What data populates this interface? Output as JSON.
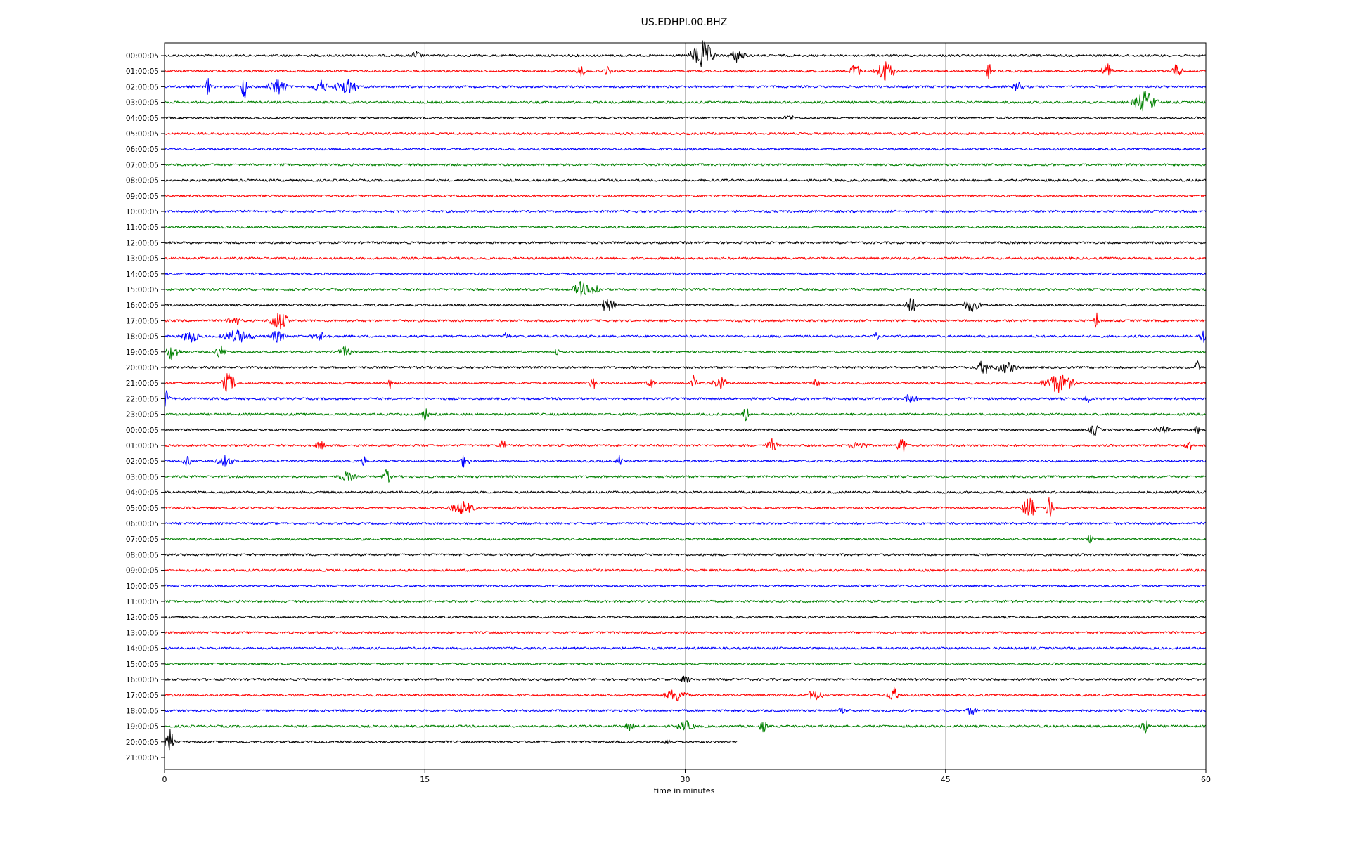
{
  "chart_data": {
    "type": "line",
    "title": "US.EDHPI.00.BHZ",
    "xlabel": "time in minutes",
    "ylabel": "",
    "xlim": [
      0,
      60
    ],
    "x_ticks": [
      "0",
      "15",
      "30",
      "45",
      "60"
    ],
    "x_tick_values": [
      0,
      15,
      30,
      45,
      60
    ],
    "grid": "vertical",
    "legend": "none",
    "color_cycle": [
      "#000000",
      "#ff0000",
      "#0000ff",
      "#008000"
    ],
    "grid_color": "#b0b0b0",
    "row_labels": [
      "00:00:05",
      "01:00:05",
      "02:00:05",
      "03:00:05",
      "04:00:05",
      "05:00:05",
      "06:00:05",
      "07:00:05",
      "08:00:05",
      "09:00:05",
      "10:00:05",
      "11:00:05",
      "12:00:05",
      "13:00:05",
      "14:00:05",
      "15:00:05",
      "16:00:05",
      "17:00:05",
      "18:00:05",
      "19:00:05",
      "20:00:05",
      "21:00:05",
      "22:00:05",
      "23:00:05",
      "00:00:05",
      "01:00:05",
      "02:00:05",
      "03:00:05",
      "04:00:05",
      "05:00:05",
      "06:00:05",
      "07:00:05",
      "08:00:05",
      "09:00:05",
      "10:00:05",
      "11:00:05",
      "12:00:05",
      "13:00:05",
      "14:00:05",
      "15:00:05",
      "16:00:05",
      "17:00:05",
      "18:00:05",
      "19:00:05",
      "20:00:05",
      "21:00:05"
    ],
    "last_trace_end_minute": 33,
    "traces_drawn": 45,
    "events": [
      {
        "row": 0,
        "t": 14.5,
        "amp": 0.4,
        "dur": 0.5
      },
      {
        "row": 0,
        "t": 31,
        "amp": 1.4,
        "dur": 1.5
      },
      {
        "row": 0,
        "t": 33,
        "amp": 0.6,
        "dur": 1.0
      },
      {
        "row": 1,
        "t": 24,
        "amp": 0.6,
        "dur": 0.4
      },
      {
        "row": 1,
        "t": 25.5,
        "amp": 0.4,
        "dur": 0.3
      },
      {
        "row": 1,
        "t": 39.8,
        "amp": 0.8,
        "dur": 0.5
      },
      {
        "row": 1,
        "t": 41.5,
        "amp": 1.0,
        "dur": 1.2
      },
      {
        "row": 1,
        "t": 47.5,
        "amp": 0.9,
        "dur": 0.1
      },
      {
        "row": 1,
        "t": 54.3,
        "amp": 0.9,
        "dur": 0.5
      },
      {
        "row": 1,
        "t": 58.3,
        "amp": 0.6,
        "dur": 0.6
      },
      {
        "row": 2,
        "t": 2.5,
        "amp": 0.9,
        "dur": 0.1
      },
      {
        "row": 2,
        "t": 4.6,
        "amp": 1.6,
        "dur": 0.2
      },
      {
        "row": 2,
        "t": 6.5,
        "amp": 0.8,
        "dur": 1.2
      },
      {
        "row": 2,
        "t": 9,
        "amp": 0.6,
        "dur": 1.0
      },
      {
        "row": 2,
        "t": 10.5,
        "amp": 0.7,
        "dur": 1.5
      },
      {
        "row": 2,
        "t": 49.2,
        "amp": 0.5,
        "dur": 0.5
      },
      {
        "row": 3,
        "t": 56.5,
        "amp": 1.0,
        "dur": 1.5
      },
      {
        "row": 4,
        "t": 36,
        "amp": 0.3,
        "dur": 0.5
      },
      {
        "row": 15,
        "t": 24,
        "amp": 0.7,
        "dur": 1.0
      },
      {
        "row": 15,
        "t": 24.8,
        "amp": 0.6,
        "dur": 0.6
      },
      {
        "row": 16,
        "t": 25.5,
        "amp": 0.6,
        "dur": 1.0
      },
      {
        "row": 16,
        "t": 43,
        "amp": 0.8,
        "dur": 0.6
      },
      {
        "row": 16,
        "t": 46.5,
        "amp": 0.6,
        "dur": 1.0
      },
      {
        "row": 17,
        "t": 4,
        "amp": 0.5,
        "dur": 0.8
      },
      {
        "row": 17,
        "t": 6.6,
        "amp": 0.9,
        "dur": 1.2
      },
      {
        "row": 17,
        "t": 53.7,
        "amp": 0.9,
        "dur": 0.1
      },
      {
        "row": 18,
        "t": 1.5,
        "amp": 0.6,
        "dur": 1.0
      },
      {
        "row": 18,
        "t": 4.2,
        "amp": 0.6,
        "dur": 2.0
      },
      {
        "row": 18,
        "t": 6.5,
        "amp": 0.5,
        "dur": 1.0
      },
      {
        "row": 18,
        "t": 9,
        "amp": 0.4,
        "dur": 1.0
      },
      {
        "row": 18,
        "t": 19.7,
        "amp": 0.4,
        "dur": 0.3
      },
      {
        "row": 18,
        "t": 41,
        "amp": 0.4,
        "dur": 0.2
      },
      {
        "row": 18,
        "t": 59.8,
        "amp": 0.8,
        "dur": 0.2
      },
      {
        "row": 19,
        "t": 0.4,
        "amp": 0.7,
        "dur": 1.0
      },
      {
        "row": 19,
        "t": 3.2,
        "amp": 0.6,
        "dur": 0.6
      },
      {
        "row": 19,
        "t": 10.4,
        "amp": 0.5,
        "dur": 0.7
      },
      {
        "row": 19,
        "t": 22.6,
        "amp": 0.4,
        "dur": 0.1
      },
      {
        "row": 20,
        "t": 47.2,
        "amp": 0.7,
        "dur": 0.8
      },
      {
        "row": 20,
        "t": 48.5,
        "amp": 0.5,
        "dur": 1.5
      },
      {
        "row": 20,
        "t": 59.5,
        "amp": 0.6,
        "dur": 0.3
      },
      {
        "row": 21,
        "t": 3.7,
        "amp": 1.0,
        "dur": 0.8
      },
      {
        "row": 21,
        "t": 13,
        "amp": 0.5,
        "dur": 0.1
      },
      {
        "row": 21,
        "t": 24.7,
        "amp": 0.6,
        "dur": 0.3
      },
      {
        "row": 21,
        "t": 28,
        "amp": 0.5,
        "dur": 0.3
      },
      {
        "row": 21,
        "t": 30.5,
        "amp": 0.8,
        "dur": 0.2
      },
      {
        "row": 21,
        "t": 32,
        "amp": 0.6,
        "dur": 0.8
      },
      {
        "row": 21,
        "t": 37.5,
        "amp": 0.5,
        "dur": 0.3
      },
      {
        "row": 21,
        "t": 51.5,
        "amp": 0.9,
        "dur": 2.0
      },
      {
        "row": 22,
        "t": 0.1,
        "amp": 0.8,
        "dur": 0.3
      },
      {
        "row": 22,
        "t": 43,
        "amp": 0.5,
        "dur": 0.6
      },
      {
        "row": 22,
        "t": 53.2,
        "amp": 0.6,
        "dur": 0.2
      },
      {
        "row": 23,
        "t": 15,
        "amp": 0.6,
        "dur": 0.3
      },
      {
        "row": 23,
        "t": 33.5,
        "amp": 0.8,
        "dur": 0.2
      },
      {
        "row": 24,
        "t": 53.6,
        "amp": 0.5,
        "dur": 0.6
      },
      {
        "row": 24,
        "t": 57.5,
        "amp": 0.3,
        "dur": 1.0
      },
      {
        "row": 24,
        "t": 59.5,
        "amp": 0.4,
        "dur": 0.2
      },
      {
        "row": 25,
        "t": 9,
        "amp": 0.4,
        "dur": 0.5
      },
      {
        "row": 25,
        "t": 19.5,
        "amp": 0.6,
        "dur": 0.3
      },
      {
        "row": 25,
        "t": 35,
        "amp": 0.6,
        "dur": 0.6
      },
      {
        "row": 25,
        "t": 40,
        "amp": 0.4,
        "dur": 1.0
      },
      {
        "row": 25,
        "t": 42.5,
        "amp": 0.9,
        "dur": 0.5
      },
      {
        "row": 25,
        "t": 59,
        "amp": 0.7,
        "dur": 0.3
      },
      {
        "row": 26,
        "t": 1.3,
        "amp": 0.7,
        "dur": 0.3
      },
      {
        "row": 26,
        "t": 3.5,
        "amp": 0.5,
        "dur": 1.0
      },
      {
        "row": 26,
        "t": 11.5,
        "amp": 0.5,
        "dur": 0.1
      },
      {
        "row": 26,
        "t": 17.3,
        "amp": 0.6,
        "dur": 0.5
      },
      {
        "row": 26,
        "t": 26.2,
        "amp": 0.5,
        "dur": 0.2
      },
      {
        "row": 27,
        "t": 10.5,
        "amp": 0.4,
        "dur": 1.0
      },
      {
        "row": 27,
        "t": 12.8,
        "amp": 0.7,
        "dur": 0.4
      },
      {
        "row": 29,
        "t": 17.2,
        "amp": 0.6,
        "dur": 1.5
      },
      {
        "row": 29,
        "t": 49.8,
        "amp": 1.2,
        "dur": 0.7
      },
      {
        "row": 29,
        "t": 51,
        "amp": 1.3,
        "dur": 0.3
      },
      {
        "row": 31,
        "t": 53.3,
        "amp": 0.4,
        "dur": 0.3
      },
      {
        "row": 40,
        "t": 30,
        "amp": 0.3,
        "dur": 0.5
      },
      {
        "row": 41,
        "t": 29.5,
        "amp": 0.6,
        "dur": 1.5
      },
      {
        "row": 41,
        "t": 37.5,
        "amp": 0.5,
        "dur": 1.0
      },
      {
        "row": 41,
        "t": 42,
        "amp": 0.7,
        "dur": 0.6
      },
      {
        "row": 42,
        "t": 39,
        "amp": 0.3,
        "dur": 0.2
      },
      {
        "row": 42,
        "t": 46.5,
        "amp": 0.4,
        "dur": 0.5
      },
      {
        "row": 43,
        "t": 26.8,
        "amp": 0.4,
        "dur": 0.4
      },
      {
        "row": 43,
        "t": 30,
        "amp": 0.5,
        "dur": 1.0
      },
      {
        "row": 43,
        "t": 34.5,
        "amp": 0.6,
        "dur": 0.3
      },
      {
        "row": 43,
        "t": 56.5,
        "amp": 0.6,
        "dur": 0.5
      },
      {
        "row": 44,
        "t": 0.3,
        "amp": 1.2,
        "dur": 0.4
      },
      {
        "row": 44,
        "t": 29,
        "amp": 0.4,
        "dur": 0.2
      }
    ]
  }
}
